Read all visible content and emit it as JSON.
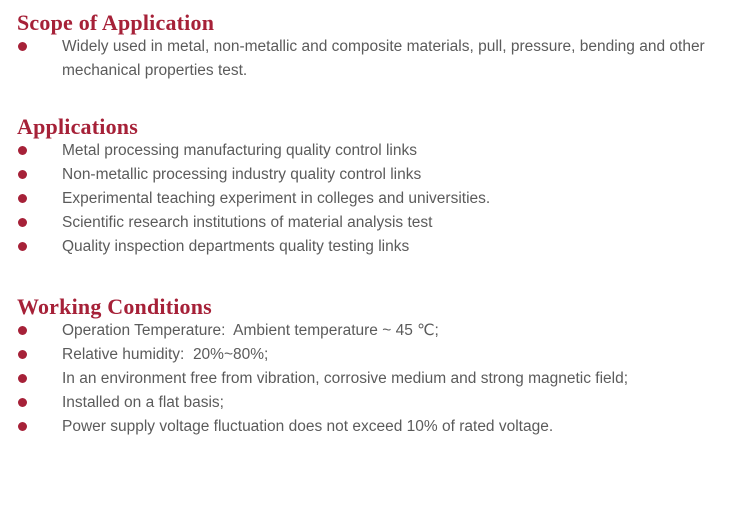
{
  "page": {
    "accent_color": "#a62138",
    "body_text_color": "#5b5b5b",
    "background_color": "#ffffff"
  },
  "sections": [
    {
      "title": "Scope of Application",
      "items": [
        "Widely used in metal, non-metallic and composite materials, pull, pressure, bending and other mechanical properties test."
      ]
    },
    {
      "title": "Applications",
      "items": [
        "Metal processing manufacturing quality control links",
        "Non-metallic processing industry quality control links",
        "Experimental teaching experiment in colleges and universities.",
        "Scientific research institutions of material analysis test",
        "Quality inspection departments quality testing links"
      ]
    },
    {
      "title": "Working Conditions",
      "items": [
        "Operation Temperature:  Ambient temperature ~ 45 ℃;",
        "Relative humidity:  20%~80%;",
        "In an environment free from vibration, corrosive medium and strong magnetic field;",
        "Installed on a flat basis;",
        "Power supply voltage fluctuation does not exceed 10% of rated voltage."
      ]
    }
  ]
}
